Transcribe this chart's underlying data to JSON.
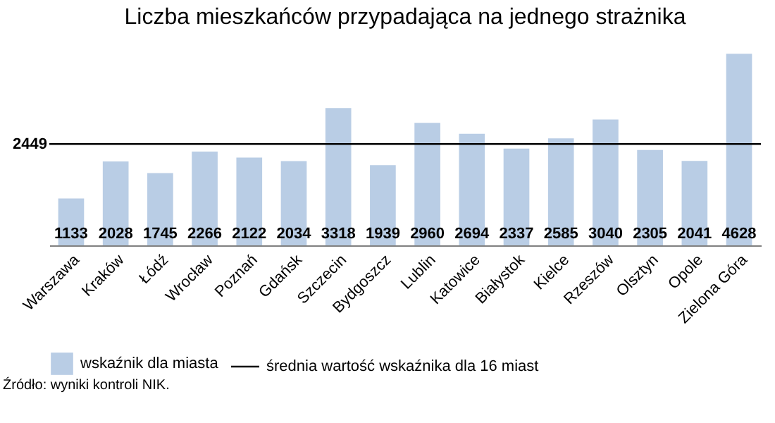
{
  "chart_data": {
    "type": "bar",
    "title": "Liczba mieszkańców przypadająca na jednego strażnika",
    "categories": [
      "Warszawa",
      "Kraków",
      "Łódź",
      "Wrocław",
      "Poznań",
      "Gdańsk",
      "Szczecin",
      "Bydgoszcz",
      "Lublin",
      "Katowice",
      "Białystok",
      "Kielce",
      "Rzeszów",
      "Olsztyn",
      "Opole",
      "Zielona Góra"
    ],
    "series": [
      {
        "name": "wskaźnik dla miasta",
        "color": "#b9cde5",
        "values": [
          1133,
          2028,
          1745,
          2266,
          2122,
          2034,
          3318,
          1939,
          2960,
          2694,
          2337,
          2585,
          3040,
          2305,
          2041,
          4628
        ]
      }
    ],
    "data_labels": true,
    "ylim": [
      0,
      4700
    ],
    "yticks": [
      2449
    ],
    "ref_lines": [
      {
        "axis": "y",
        "value": 2449,
        "label": "średnia wartość wskaźnika dla 16 miast",
        "color": "#000000"
      }
    ],
    "legend": "bottom",
    "annotations": [
      "Źródło: wyniki kontroli NIK."
    ]
  }
}
